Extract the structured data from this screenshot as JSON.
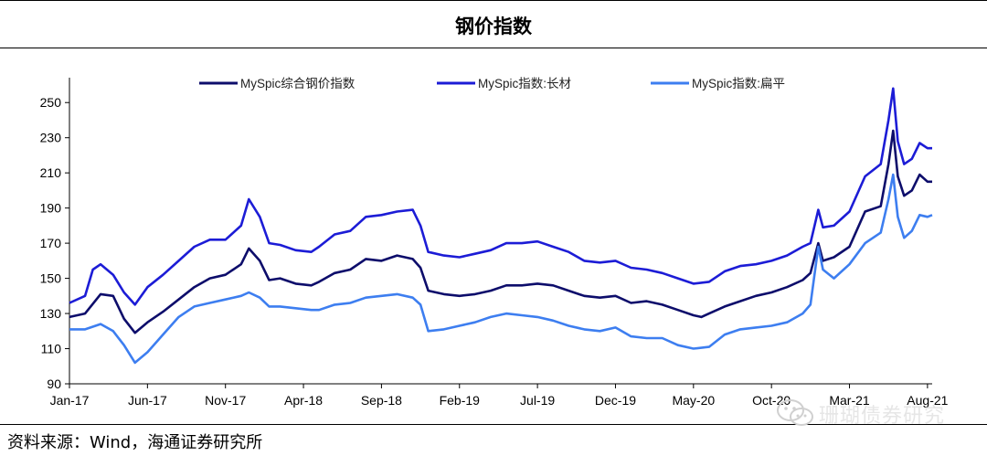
{
  "header": {
    "title": "钢价指数"
  },
  "footer": {
    "source": "资料来源：Wind，海通证券研究所"
  },
  "watermark": {
    "text": "珊瑚债券研究"
  },
  "chart_data": {
    "type": "line",
    "title": "钢价指数",
    "xlabel": "",
    "ylabel": "",
    "ylim": [
      90,
      260
    ],
    "yticks": [
      90,
      110,
      130,
      150,
      170,
      190,
      210,
      230,
      250
    ],
    "x_tick_labels": [
      "Jan-17",
      "Jun-17",
      "Nov-17",
      "Apr-18",
      "Sep-18",
      "Feb-19",
      "Jul-19",
      "Dec-19",
      "May-20",
      "Oct-20",
      "Mar-21",
      "Aug-21"
    ],
    "x_tick_months": [
      0,
      5,
      10,
      15,
      20,
      25,
      30,
      35,
      40,
      45,
      50,
      55
    ],
    "x_max_month": 55.3,
    "grid": false,
    "legend_position": "top",
    "series": [
      {
        "name": "MySpic综合钢价指数",
        "color": "#0d0d6b",
        "points": [
          [
            0,
            128
          ],
          [
            1,
            130
          ],
          [
            2,
            141
          ],
          [
            2.8,
            140
          ],
          [
            3.5,
            127
          ],
          [
            4.2,
            119
          ],
          [
            5,
            125
          ],
          [
            6,
            131
          ],
          [
            7,
            138
          ],
          [
            8,
            145
          ],
          [
            9,
            150
          ],
          [
            10,
            152
          ],
          [
            11,
            158
          ],
          [
            11.5,
            167
          ],
          [
            12.2,
            160
          ],
          [
            12.8,
            149
          ],
          [
            13.5,
            150
          ],
          [
            14.5,
            147
          ],
          [
            15.5,
            146
          ],
          [
            16,
            148
          ],
          [
            17,
            153
          ],
          [
            18,
            155
          ],
          [
            19,
            161
          ],
          [
            20,
            160
          ],
          [
            21,
            163
          ],
          [
            22,
            161
          ],
          [
            22.5,
            156
          ],
          [
            23,
            143
          ],
          [
            24,
            141
          ],
          [
            25,
            140
          ],
          [
            26,
            141
          ],
          [
            27,
            143
          ],
          [
            28,
            146
          ],
          [
            29,
            146
          ],
          [
            30,
            147
          ],
          [
            31,
            146
          ],
          [
            32,
            143
          ],
          [
            33,
            140
          ],
          [
            34,
            139
          ],
          [
            35,
            140
          ],
          [
            36,
            136
          ],
          [
            37,
            137
          ],
          [
            38,
            135
          ],
          [
            39,
            132
          ],
          [
            40,
            129
          ],
          [
            40.5,
            128
          ],
          [
            41,
            130
          ],
          [
            42,
            134
          ],
          [
            43,
            137
          ],
          [
            44,
            140
          ],
          [
            45,
            142
          ],
          [
            46,
            145
          ],
          [
            47,
            149
          ],
          [
            47.5,
            153
          ],
          [
            48,
            170
          ],
          [
            48.3,
            160
          ],
          [
            49,
            162
          ],
          [
            50,
            168
          ],
          [
            51,
            188
          ],
          [
            52,
            191
          ],
          [
            52.5,
            215
          ],
          [
            52.8,
            234
          ],
          [
            53.1,
            208
          ],
          [
            53.5,
            197
          ],
          [
            54,
            200
          ],
          [
            54.5,
            209
          ],
          [
            55,
            205
          ],
          [
            55.3,
            205
          ]
        ]
      },
      {
        "name": "MySpic指数:长材",
        "color": "#1c1cd6",
        "points": [
          [
            0,
            136
          ],
          [
            1,
            140
          ],
          [
            1.5,
            155
          ],
          [
            2,
            158
          ],
          [
            2.8,
            152
          ],
          [
            3.5,
            142
          ],
          [
            4.2,
            135
          ],
          [
            5,
            145
          ],
          [
            6,
            152
          ],
          [
            7,
            160
          ],
          [
            8,
            168
          ],
          [
            9,
            172
          ],
          [
            10,
            172
          ],
          [
            11,
            180
          ],
          [
            11.5,
            195
          ],
          [
            12.2,
            185
          ],
          [
            12.8,
            170
          ],
          [
            13.5,
            169
          ],
          [
            14.5,
            166
          ],
          [
            15.5,
            165
          ],
          [
            16,
            168
          ],
          [
            17,
            175
          ],
          [
            18,
            177
          ],
          [
            19,
            185
          ],
          [
            20,
            186
          ],
          [
            21,
            188
          ],
          [
            22,
            189
          ],
          [
            22.5,
            180
          ],
          [
            23,
            165
          ],
          [
            24,
            163
          ],
          [
            25,
            162
          ],
          [
            26,
            164
          ],
          [
            27,
            166
          ],
          [
            28,
            170
          ],
          [
            29,
            170
          ],
          [
            30,
            171
          ],
          [
            31,
            168
          ],
          [
            32,
            165
          ],
          [
            33,
            160
          ],
          [
            34,
            159
          ],
          [
            35,
            160
          ],
          [
            36,
            156
          ],
          [
            37,
            155
          ],
          [
            38,
            153
          ],
          [
            39,
            150
          ],
          [
            40,
            147
          ],
          [
            41,
            148
          ],
          [
            42,
            154
          ],
          [
            43,
            157
          ],
          [
            44,
            158
          ],
          [
            45,
            160
          ],
          [
            46,
            163
          ],
          [
            47,
            168
          ],
          [
            47.5,
            170
          ],
          [
            48,
            189
          ],
          [
            48.3,
            179
          ],
          [
            49,
            180
          ],
          [
            50,
            188
          ],
          [
            51,
            208
          ],
          [
            52,
            215
          ],
          [
            52.5,
            240
          ],
          [
            52.8,
            258
          ],
          [
            53.1,
            228
          ],
          [
            53.5,
            215
          ],
          [
            54,
            218
          ],
          [
            54.5,
            227
          ],
          [
            55,
            224
          ],
          [
            55.3,
            224
          ]
        ]
      },
      {
        "name": "MySpic指数:扁平",
        "color": "#3d7ef0",
        "points": [
          [
            0,
            121
          ],
          [
            1,
            121
          ],
          [
            2,
            124
          ],
          [
            2.8,
            120
          ],
          [
            3.5,
            112
          ],
          [
            4.2,
            102
          ],
          [
            5,
            108
          ],
          [
            6,
            118
          ],
          [
            7,
            128
          ],
          [
            8,
            134
          ],
          [
            9,
            136
          ],
          [
            10,
            138
          ],
          [
            11,
            140
          ],
          [
            11.5,
            142
          ],
          [
            12.2,
            139
          ],
          [
            12.8,
            134
          ],
          [
            13.5,
            134
          ],
          [
            14.5,
            133
          ],
          [
            15.5,
            132
          ],
          [
            16,
            132
          ],
          [
            17,
            135
          ],
          [
            18,
            136
          ],
          [
            19,
            139
          ],
          [
            20,
            140
          ],
          [
            21,
            141
          ],
          [
            22,
            139
          ],
          [
            22.5,
            135
          ],
          [
            23,
            120
          ],
          [
            24,
            121
          ],
          [
            25,
            123
          ],
          [
            26,
            125
          ],
          [
            27,
            128
          ],
          [
            28,
            130
          ],
          [
            29,
            129
          ],
          [
            30,
            128
          ],
          [
            31,
            126
          ],
          [
            32,
            123
          ],
          [
            33,
            121
          ],
          [
            34,
            120
          ],
          [
            35,
            122
          ],
          [
            36,
            117
          ],
          [
            37,
            116
          ],
          [
            38,
            116
          ],
          [
            39,
            112
          ],
          [
            40,
            110
          ],
          [
            41,
            111
          ],
          [
            42,
            118
          ],
          [
            43,
            121
          ],
          [
            44,
            122
          ],
          [
            45,
            123
          ],
          [
            46,
            125
          ],
          [
            47,
            130
          ],
          [
            47.5,
            135
          ],
          [
            48,
            168
          ],
          [
            48.3,
            155
          ],
          [
            49,
            150
          ],
          [
            50,
            158
          ],
          [
            51,
            170
          ],
          [
            52,
            176
          ],
          [
            52.5,
            195
          ],
          [
            52.8,
            209
          ],
          [
            53.1,
            185
          ],
          [
            53.5,
            173
          ],
          [
            54,
            177
          ],
          [
            54.5,
            186
          ],
          [
            55,
            185
          ],
          [
            55.3,
            186
          ]
        ]
      }
    ]
  }
}
